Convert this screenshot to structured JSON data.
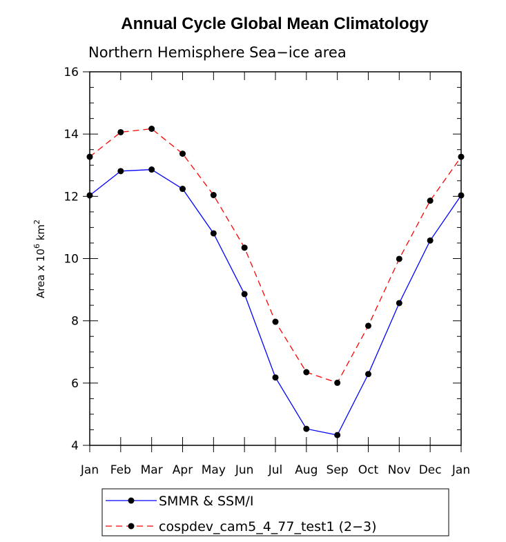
{
  "chart_data": {
    "type": "line",
    "title": "Annual Cycle Global Mean Climatology",
    "subtitle": "Northern Hemisphere Sea−ice area",
    "ylabel_prefix": "Area x 10",
    "ylabel_exp1": "6",
    "ylabel_mid": " km",
    "ylabel_exp2": "2",
    "xlabel": "",
    "categories": [
      "Jan",
      "Feb",
      "Mar",
      "Apr",
      "May",
      "Jun",
      "Jul",
      "Aug",
      "Sep",
      "Oct",
      "Nov",
      "Dec",
      "Jan"
    ],
    "ylim": [
      4,
      16
    ],
    "yticks": [
      4,
      6,
      8,
      10,
      12,
      14,
      16
    ],
    "grid": false,
    "legend_position": "bottom",
    "series": [
      {
        "name": "SMMR & SSM/I",
        "color": "#0000ff",
        "dash": "solid",
        "values": [
          12.03,
          12.81,
          12.86,
          12.24,
          10.81,
          8.86,
          6.18,
          4.53,
          4.33,
          6.29,
          8.57,
          10.58,
          12.03
        ]
      },
      {
        "name": "cospdev_cam5_4_77_test1 (2−3)",
        "color": "#ff0000",
        "dash": "dashed",
        "values": [
          13.27,
          14.06,
          14.17,
          13.37,
          12.04,
          10.35,
          7.97,
          6.35,
          6.01,
          7.84,
          9.99,
          11.86,
          13.27
        ]
      }
    ]
  }
}
